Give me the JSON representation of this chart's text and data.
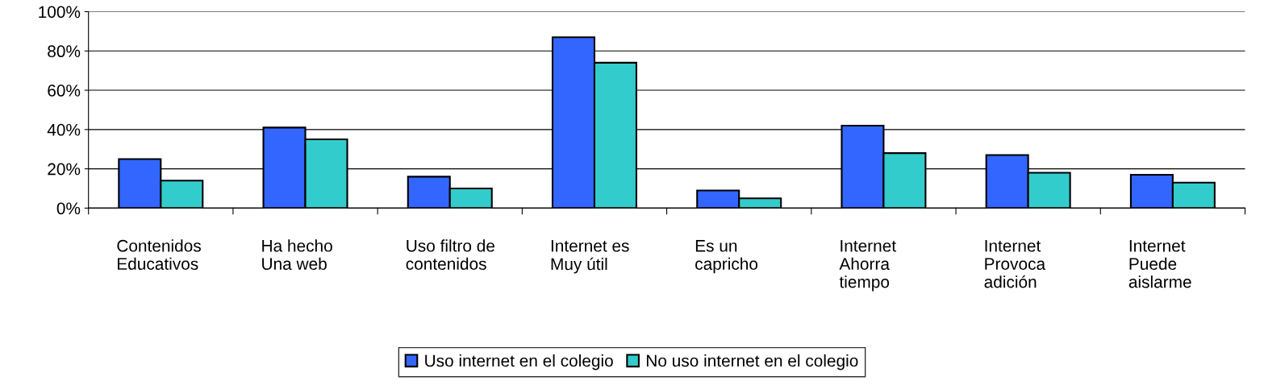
{
  "chart_data": {
    "type": "bar",
    "categories": [
      "Contenidos\nEducativos",
      "Ha hecho\nUna web",
      "Uso filtro de\ncontenidos",
      "Internet es\nMuy útil",
      "Es un\ncapricho",
      "Internet\nAhorra\ntiempo",
      "Internet\nProvoca\nadición",
      "Internet\nPuede\naislarme"
    ],
    "series": [
      {
        "name": "Uso internet en el colegio",
        "color": "#3366ff",
        "values": [
          25,
          41,
          16,
          87,
          9,
          42,
          27,
          17
        ]
      },
      {
        "name": "No uso internet en el colegio",
        "color": "#33cccc",
        "values": [
          14,
          35,
          10,
          74,
          5,
          28,
          18,
          13
        ]
      }
    ],
    "ylim": [
      0,
      100
    ],
    "yticks": [
      {
        "value": 0,
        "label": "0%"
      },
      {
        "value": 20,
        "label": "20%"
      },
      {
        "value": 40,
        "label": "40%"
      },
      {
        "value": 60,
        "label": "60%"
      },
      {
        "value": 80,
        "label": "80%"
      },
      {
        "value": 100,
        "label": "100%"
      }
    ],
    "grid": "y",
    "legend": "bottom"
  }
}
